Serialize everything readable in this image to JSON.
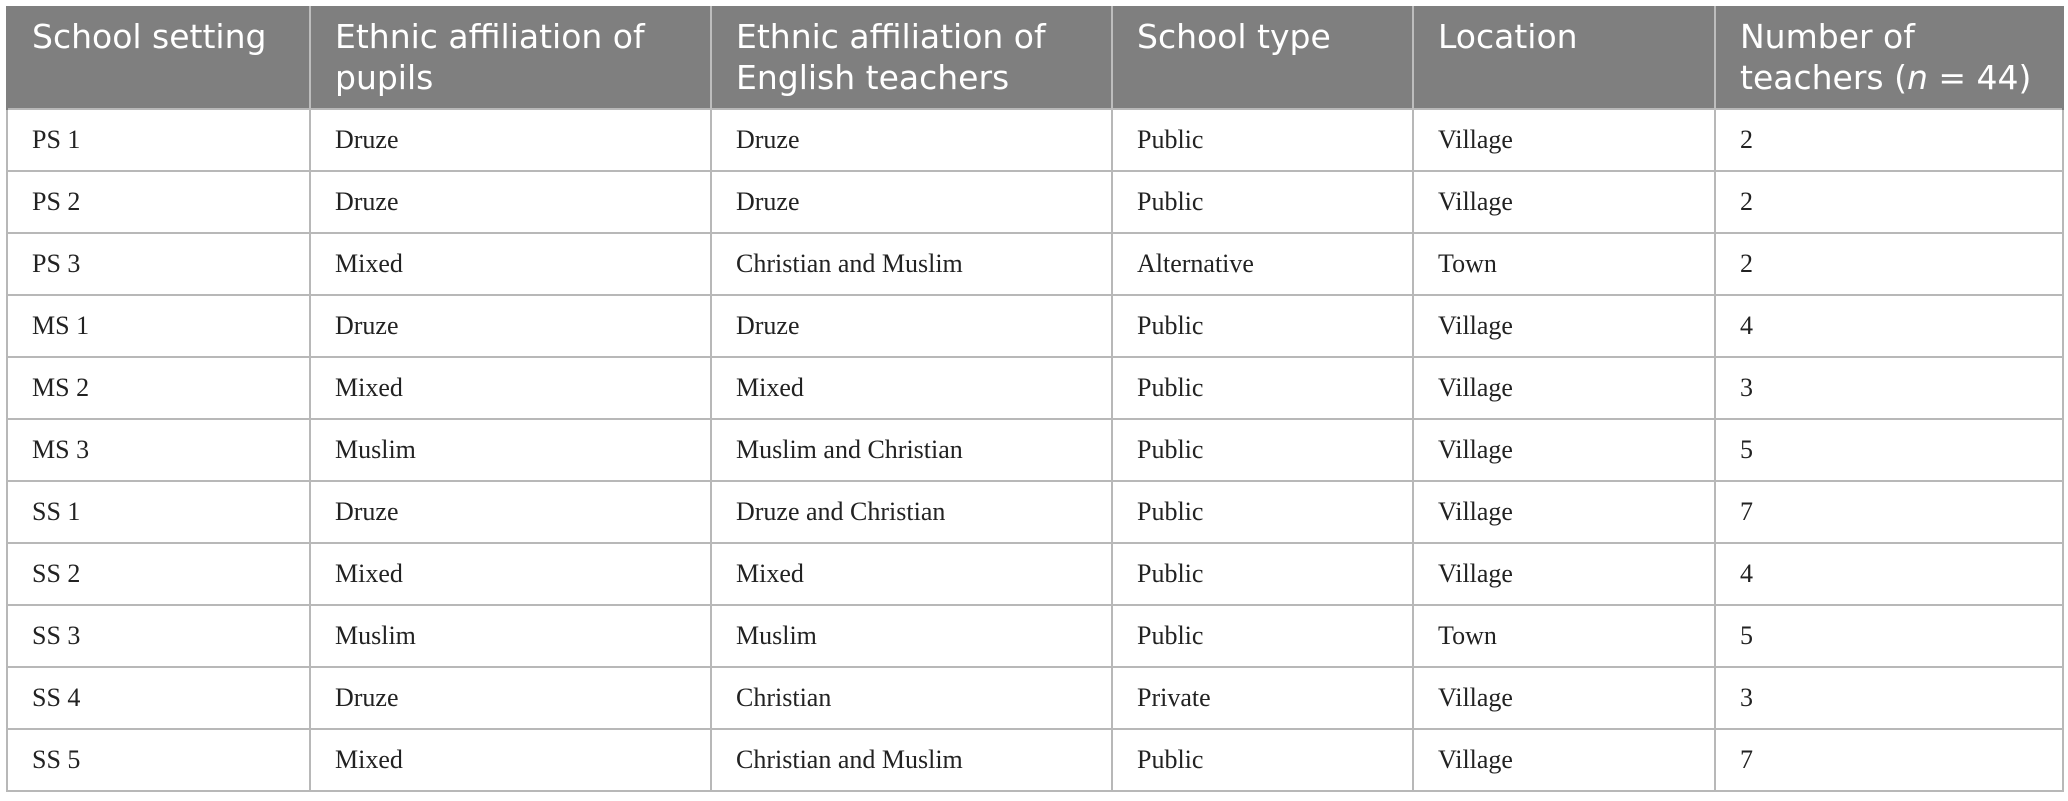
{
  "table": {
    "headers": [
      {
        "text": "School setting"
      },
      {
        "text": "Ethnic affiliation of pupils"
      },
      {
        "text": "Ethnic affiliation of English teachers"
      },
      {
        "text": "School type"
      },
      {
        "text": "Location"
      },
      {
        "text_before": "Number of teachers (",
        "italic": "n",
        "text_after": " = 44)"
      }
    ],
    "rows": [
      [
        "PS 1",
        "Druze",
        "Druze",
        "Public",
        "Village",
        "2"
      ],
      [
        "PS 2",
        "Druze",
        "Druze",
        "Public",
        "Village",
        "2"
      ],
      [
        "PS 3",
        "Mixed",
        "Christian and Muslim",
        "Alternative",
        "Town",
        "2"
      ],
      [
        "MS 1",
        "Druze",
        "Druze",
        "Public",
        "Village",
        "4"
      ],
      [
        "MS 2",
        "Mixed",
        "Mixed",
        "Public",
        "Village",
        "3"
      ],
      [
        "MS 3",
        "Muslim",
        "Muslim and Christian",
        "Public",
        "Village",
        "5"
      ],
      [
        "SS 1",
        "Druze",
        "Druze and Christian",
        "Public",
        "Village",
        "7"
      ],
      [
        "SS 2",
        "Mixed",
        "Mixed",
        "Public",
        "Village",
        "4"
      ],
      [
        "SS 3",
        "Muslim",
        "Muslim",
        "Public",
        "Town",
        "5"
      ],
      [
        "SS 4",
        "Druze",
        "Christian",
        "Private",
        "Village",
        "3"
      ],
      [
        "SS 5",
        "Mixed",
        "Christian and Muslim",
        "Public",
        "Village",
        "7"
      ]
    ]
  }
}
